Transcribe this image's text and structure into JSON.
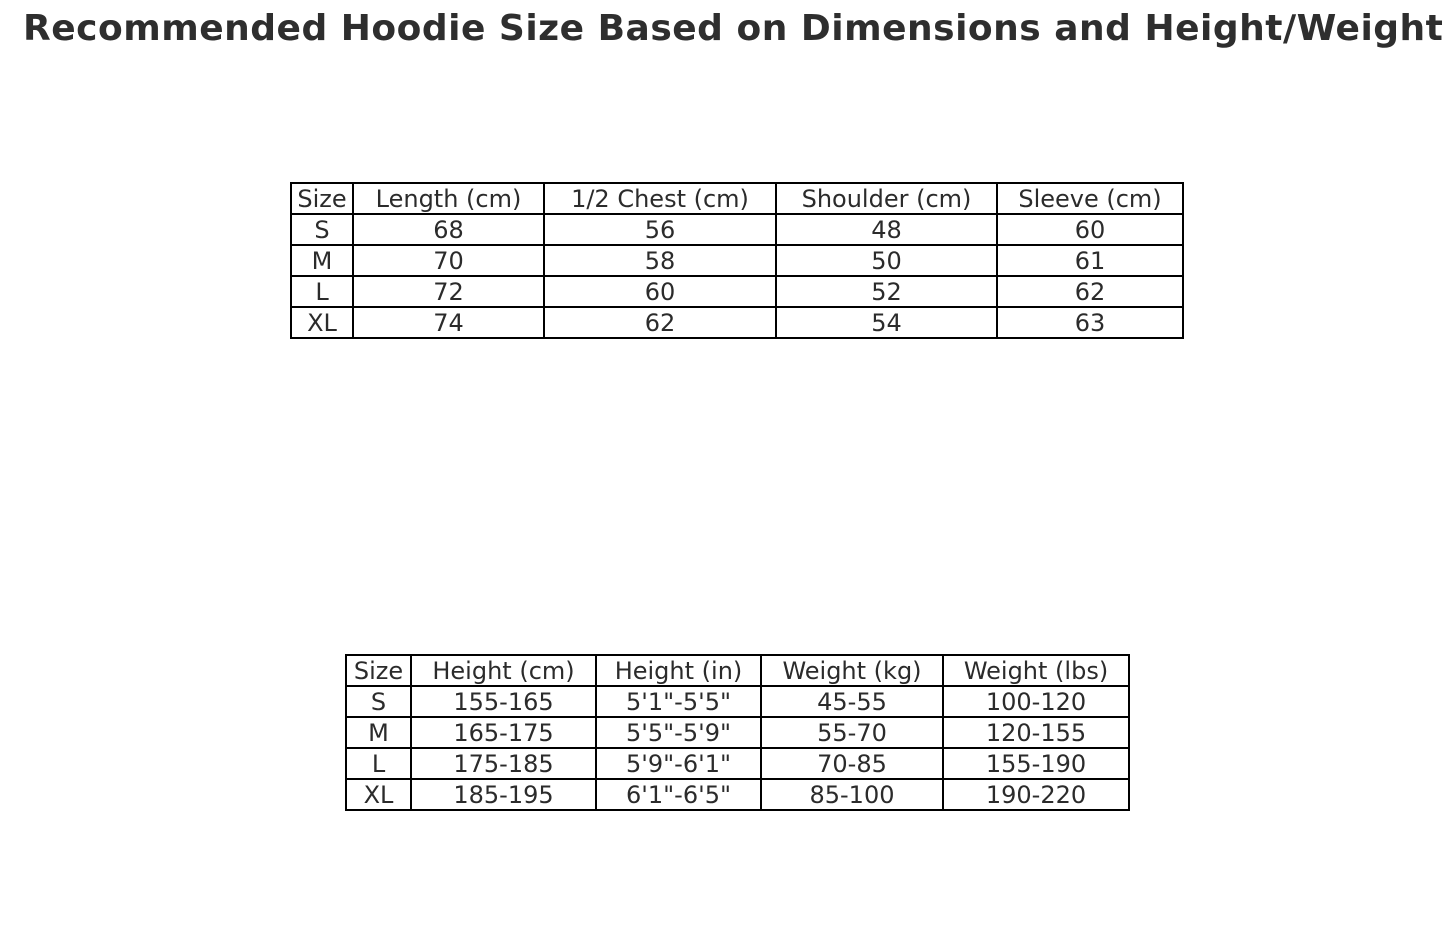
{
  "title": "Recommended Hoodie Size Based on Dimensions and Height/Weight",
  "colors": {
    "background": "#ffffff",
    "title_text": "#2e2e2e",
    "table_text": "#2b2b2b",
    "table_border": "#000000"
  },
  "chart_data": [
    {
      "type": "table",
      "name": "hoodie-dimensions",
      "columns": [
        "Size",
        "Length (cm)",
        "1/2 Chest (cm)",
        "Shoulder (cm)",
        "Sleeve (cm)"
      ],
      "rows": [
        [
          "S",
          "68",
          "56",
          "48",
          "60"
        ],
        [
          "M",
          "70",
          "58",
          "50",
          "61"
        ],
        [
          "L",
          "72",
          "60",
          "52",
          "62"
        ],
        [
          "XL",
          "74",
          "62",
          "54",
          "63"
        ]
      ]
    },
    {
      "type": "table",
      "name": "height-weight-recommendation",
      "columns": [
        "Size",
        "Height (cm)",
        "Height (in)",
        "Weight (kg)",
        "Weight (lbs)"
      ],
      "rows": [
        [
          "S",
          "155-165",
          "5'1\"-5'5\"",
          "45-55",
          "100-120"
        ],
        [
          "M",
          "165-175",
          "5'5\"-5'9\"",
          "55-70",
          "120-155"
        ],
        [
          "L",
          "175-185",
          "5'9\"-6'1\"",
          "70-85",
          "155-190"
        ],
        [
          "XL",
          "185-195",
          "6'1\"-6'5\"",
          "85-100",
          "190-220"
        ]
      ]
    }
  ]
}
